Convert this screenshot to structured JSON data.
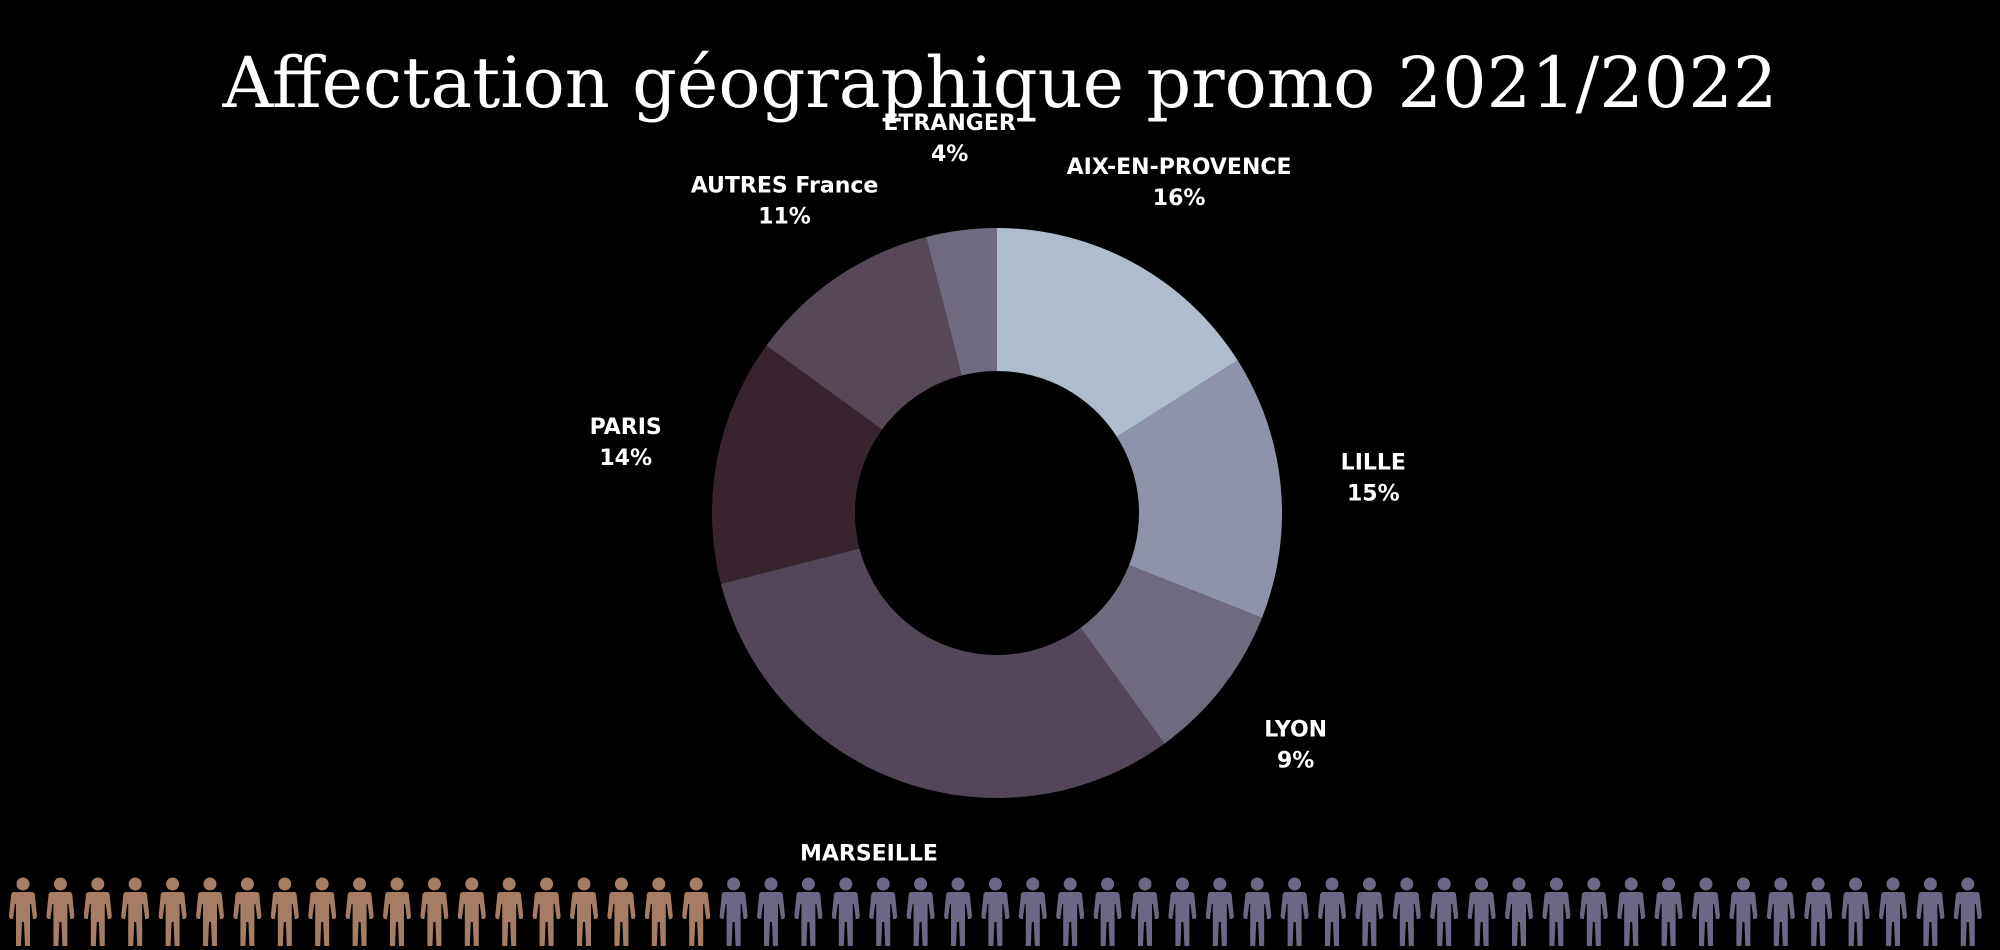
{
  "title": "Affectation géographique promo 2021/2022",
  "chart_data": {
    "type": "pie",
    "variant": "donut",
    "title": "Affectation géographique promo 2021/2022",
    "start_angle_deg": 0,
    "direction": "clockwise",
    "slices": [
      {
        "label": "AIX-EN-PROVENCE",
        "value": 16,
        "value_label": "16%",
        "color": "#aebccc"
      },
      {
        "label": "LILLE",
        "value": 15,
        "value_label": "15%",
        "color": "#8e93a9"
      },
      {
        "label": "LYON",
        "value": 9,
        "value_label": "9%",
        "color": "#6f6a7e"
      },
      {
        "label": "MARSEILLE",
        "value": 31,
        "value_label": "31%",
        "color": "#524658"
      },
      {
        "label": "PARIS",
        "value": 14,
        "value_label": "14%",
        "color": "#37242e"
      },
      {
        "label": "AUTRES France",
        "value": 11,
        "value_label": "11%",
        "color": "#564857"
      },
      {
        "label": "ETRANGER",
        "value": 4,
        "value_label": "4%",
        "color": "#6f6a7e"
      }
    ]
  },
  "people_row": {
    "icon": "person-icon",
    "total": 53,
    "highlighted": 19,
    "highlight_color": "#a67c62",
    "base_color": "#6b6886"
  }
}
